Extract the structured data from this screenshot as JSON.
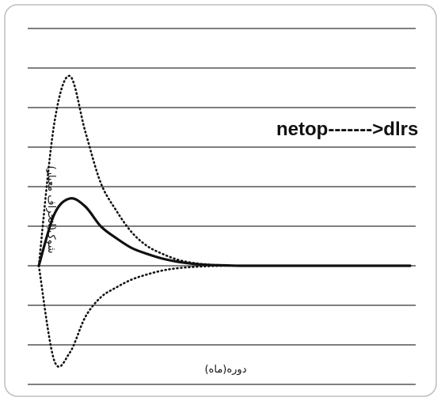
{
  "chart_data": {
    "type": "line",
    "x_label": "دوره(ماه)",
    "y_label": "شوک(انحراف معیار)",
    "annotation": "netop------->dlrs",
    "x_range": [
      0,
      24
    ],
    "y_range": [
      -3.0,
      6.0
    ],
    "grid": true,
    "series": [
      {
        "style": "solid",
        "x": [
          0,
          1,
          2,
          3,
          4,
          5,
          6,
          7,
          8,
          9,
          10,
          11,
          12,
          13,
          14,
          15,
          16,
          17,
          18,
          19,
          20,
          21,
          22,
          23,
          24
        ],
        "values": [
          0.0,
          1.3,
          1.7,
          1.5,
          1.0,
          0.7,
          0.45,
          0.3,
          0.18,
          0.1,
          0.05,
          0.02,
          0.01,
          0.0,
          0.0,
          0.0,
          0.0,
          0.0,
          0.0,
          0.0,
          0.0,
          0.0,
          0.0,
          0.0,
          0.0
        ]
      },
      {
        "style": "dotted",
        "x": [
          0,
          1,
          2,
          3,
          4,
          5,
          6,
          7,
          8,
          9,
          10,
          11,
          12,
          13,
          14,
          15,
          16,
          17,
          18,
          19,
          20,
          21,
          22,
          23,
          24
        ],
        "values": [
          0.0,
          3.6,
          4.8,
          3.4,
          2.1,
          1.4,
          0.85,
          0.5,
          0.3,
          0.15,
          0.07,
          0.03,
          0.01,
          0.0,
          0.0,
          0.0,
          0.0,
          0.0,
          0.0,
          0.0,
          0.0,
          0.0,
          0.0,
          0.0,
          0.0
        ]
      },
      {
        "style": "dotted",
        "x": [
          0,
          1,
          2,
          3,
          4,
          5,
          6,
          7,
          8,
          9,
          10,
          11,
          12,
          13,
          14,
          15,
          16,
          17,
          18,
          19,
          20,
          21,
          22,
          23,
          24
        ],
        "values": [
          0.0,
          -2.4,
          -2.2,
          -1.3,
          -0.8,
          -0.55,
          -0.35,
          -0.22,
          -0.12,
          -0.06,
          -0.03,
          -0.01,
          0.0,
          0.0,
          0.0,
          0.0,
          0.0,
          0.0,
          0.0,
          0.0,
          0.0,
          0.0,
          0.0,
          0.0,
          0.0
        ]
      }
    ]
  }
}
